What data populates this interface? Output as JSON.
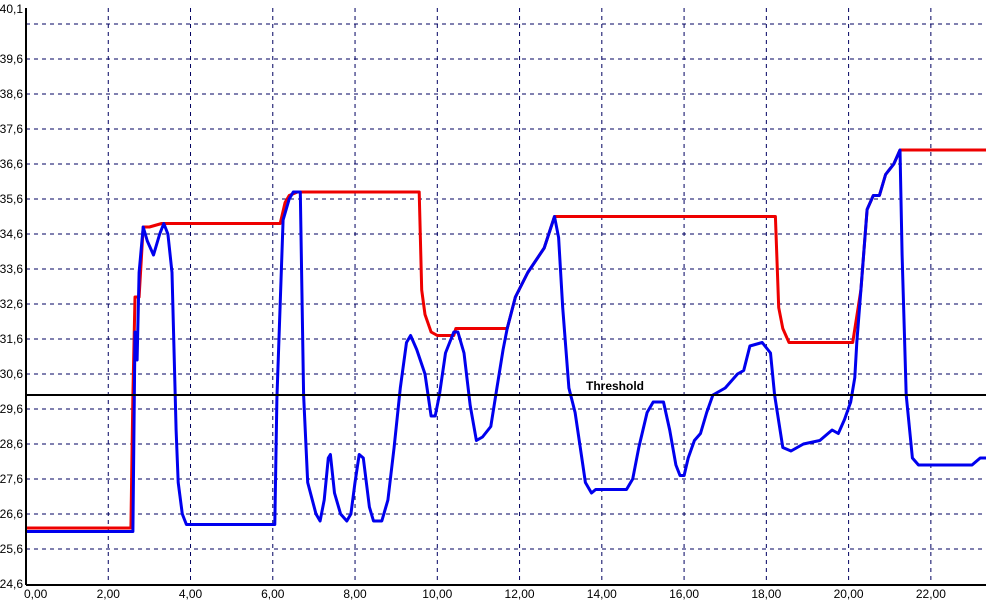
{
  "chart_data": {
    "type": "line",
    "title": "",
    "xlabel": "",
    "ylabel": "",
    "xlim": [
      0,
      23.35
    ],
    "ylim": [
      24.6,
      41.05
    ],
    "grid": true,
    "x_ticks": [
      {
        "value": 0,
        "label": "0,00"
      },
      {
        "value": 2,
        "label": "2,00"
      },
      {
        "value": 4,
        "label": "4,00"
      },
      {
        "value": 6,
        "label": "6,00"
      },
      {
        "value": 8,
        "label": "8,00"
      },
      {
        "value": 10,
        "label": "10,00"
      },
      {
        "value": 12,
        "label": "12,00"
      },
      {
        "value": 14,
        "label": "14,00"
      },
      {
        "value": 16,
        "label": "16,00"
      },
      {
        "value": 18,
        "label": "18,00"
      },
      {
        "value": 20,
        "label": "20,00"
      },
      {
        "value": 22,
        "label": "22,00"
      }
    ],
    "y_ticks": [
      {
        "value": 24.6,
        "label": "24,6"
      },
      {
        "value": 25.6,
        "label": "25,6"
      },
      {
        "value": 26.6,
        "label": "26,6"
      },
      {
        "value": 27.6,
        "label": "27,6"
      },
      {
        "value": 28.6,
        "label": "28,6"
      },
      {
        "value": 29.6,
        "label": "29,6"
      },
      {
        "value": 30.6,
        "label": "30,6"
      },
      {
        "value": 31.6,
        "label": "31,6"
      },
      {
        "value": 32.6,
        "label": "32,6"
      },
      {
        "value": 33.6,
        "label": "33,6"
      },
      {
        "value": 34.6,
        "label": "34,6"
      },
      {
        "value": 35.6,
        "label": "35,6"
      },
      {
        "value": 36.6,
        "label": "36,6"
      },
      {
        "value": 37.6,
        "label": "37,6"
      },
      {
        "value": 38.6,
        "label": "38,6"
      },
      {
        "value": 39.6,
        "label": "39,6"
      },
      {
        "value": 40.6,
        "label": ""
      }
    ],
    "y_max_label": "40,1",
    "threshold": {
      "value": 30.0,
      "label": "Threshold",
      "color": "#000000"
    },
    "series": [
      {
        "color": "#ee0000",
        "points": [
          [
            0,
            26.2
          ],
          [
            2.55,
            26.2
          ],
          [
            2.6,
            30.0
          ],
          [
            2.65,
            32.8
          ],
          [
            2.75,
            32.8
          ],
          [
            2.85,
            34.8
          ],
          [
            3.0,
            34.8
          ],
          [
            3.3,
            34.9
          ],
          [
            6.18,
            34.9
          ],
          [
            6.3,
            35.5
          ],
          [
            6.4,
            35.7
          ],
          [
            6.6,
            35.8
          ],
          [
            9.56,
            35.8
          ],
          [
            9.62,
            33.0
          ],
          [
            9.7,
            32.3
          ],
          [
            9.85,
            31.8
          ],
          [
            10.0,
            31.7
          ],
          [
            10.4,
            31.7
          ],
          [
            10.45,
            31.9
          ],
          [
            11.7,
            31.9
          ],
          [
            11.9,
            32.8
          ],
          [
            12.2,
            33.5
          ],
          [
            12.6,
            34.2
          ],
          [
            12.85,
            35.1
          ],
          [
            18.22,
            35.1
          ],
          [
            18.3,
            32.5
          ],
          [
            18.4,
            31.9
          ],
          [
            18.55,
            31.5
          ],
          [
            20.1,
            31.5
          ],
          [
            20.3,
            33.0
          ],
          [
            20.45,
            35.3
          ],
          [
            20.6,
            35.7
          ],
          [
            20.75,
            35.7
          ],
          [
            20.9,
            36.3
          ],
          [
            21.1,
            36.6
          ],
          [
            21.25,
            37.0
          ],
          [
            23.35,
            37.0
          ]
        ]
      },
      {
        "color": "#0000ee",
        "points": [
          [
            0,
            26.1
          ],
          [
            2.6,
            26.1
          ],
          [
            2.65,
            31.8
          ],
          [
            2.7,
            31.0
          ],
          [
            2.75,
            33.5
          ],
          [
            2.85,
            34.8
          ],
          [
            2.95,
            34.4
          ],
          [
            3.1,
            34.0
          ],
          [
            3.25,
            34.6
          ],
          [
            3.35,
            34.9
          ],
          [
            3.45,
            34.6
          ],
          [
            3.55,
            33.5
          ],
          [
            3.65,
            29.0
          ],
          [
            3.7,
            27.5
          ],
          [
            3.8,
            26.6
          ],
          [
            3.9,
            26.3
          ],
          [
            6.05,
            26.3
          ],
          [
            6.1,
            29.9
          ],
          [
            6.25,
            35.0
          ],
          [
            6.4,
            35.6
          ],
          [
            6.5,
            35.8
          ],
          [
            6.67,
            35.8
          ],
          [
            6.75,
            30.0
          ],
          [
            6.85,
            27.5
          ],
          [
            7.05,
            26.6
          ],
          [
            7.15,
            26.4
          ],
          [
            7.25,
            27.0
          ],
          [
            7.35,
            28.2
          ],
          [
            7.4,
            28.3
          ],
          [
            7.5,
            27.2
          ],
          [
            7.65,
            26.6
          ],
          [
            7.8,
            26.4
          ],
          [
            7.9,
            26.6
          ],
          [
            8.0,
            27.5
          ],
          [
            8.1,
            28.3
          ],
          [
            8.2,
            28.2
          ],
          [
            8.35,
            26.8
          ],
          [
            8.45,
            26.4
          ],
          [
            8.65,
            26.4
          ],
          [
            8.8,
            27.0
          ],
          [
            8.95,
            28.5
          ],
          [
            9.1,
            30.2
          ],
          [
            9.25,
            31.5
          ],
          [
            9.35,
            31.7
          ],
          [
            9.5,
            31.3
          ],
          [
            9.7,
            30.6
          ],
          [
            9.85,
            29.4
          ],
          [
            9.95,
            29.4
          ],
          [
            10.05,
            30.0
          ],
          [
            10.2,
            31.2
          ],
          [
            10.4,
            31.8
          ],
          [
            10.5,
            31.8
          ],
          [
            10.65,
            31.2
          ],
          [
            10.8,
            29.7
          ],
          [
            10.95,
            28.7
          ],
          [
            11.1,
            28.8
          ],
          [
            11.3,
            29.1
          ],
          [
            11.45,
            30.2
          ],
          [
            11.6,
            31.3
          ],
          [
            11.7,
            31.9
          ],
          [
            11.9,
            32.8
          ],
          [
            12.2,
            33.5
          ],
          [
            12.6,
            34.2
          ],
          [
            12.85,
            35.1
          ],
          [
            12.95,
            34.5
          ],
          [
            13.05,
            32.5
          ],
          [
            13.2,
            30.2
          ],
          [
            13.35,
            29.5
          ],
          [
            13.5,
            28.3
          ],
          [
            13.6,
            27.5
          ],
          [
            13.75,
            27.2
          ],
          [
            13.85,
            27.3
          ],
          [
            14.6,
            27.3
          ],
          [
            14.75,
            27.6
          ],
          [
            14.9,
            28.5
          ],
          [
            15.1,
            29.5
          ],
          [
            15.25,
            29.8
          ],
          [
            15.5,
            29.8
          ],
          [
            15.65,
            29.0
          ],
          [
            15.8,
            28.0
          ],
          [
            15.9,
            27.7
          ],
          [
            16.0,
            27.7
          ],
          [
            16.1,
            28.2
          ],
          [
            16.25,
            28.7
          ],
          [
            16.4,
            28.9
          ],
          [
            16.55,
            29.5
          ],
          [
            16.7,
            30.0
          ],
          [
            17.0,
            30.2
          ],
          [
            17.3,
            30.6
          ],
          [
            17.45,
            30.7
          ],
          [
            17.6,
            31.4
          ],
          [
            17.9,
            31.5
          ],
          [
            18.1,
            31.2
          ],
          [
            18.2,
            30.0
          ],
          [
            18.4,
            28.5
          ],
          [
            18.6,
            28.4
          ],
          [
            18.9,
            28.6
          ],
          [
            19.3,
            28.7
          ],
          [
            19.6,
            29.0
          ],
          [
            19.75,
            28.9
          ],
          [
            19.9,
            29.3
          ],
          [
            20.05,
            29.8
          ],
          [
            20.15,
            30.5
          ],
          [
            20.2,
            31.5
          ],
          [
            20.3,
            33.0
          ],
          [
            20.45,
            35.3
          ],
          [
            20.6,
            35.7
          ],
          [
            20.75,
            35.7
          ],
          [
            20.9,
            36.3
          ],
          [
            21.1,
            36.6
          ],
          [
            21.25,
            37.0
          ],
          [
            21.3,
            34.0
          ],
          [
            21.4,
            30.0
          ],
          [
            21.55,
            28.2
          ],
          [
            21.7,
            28.0
          ],
          [
            22.8,
            28.0
          ],
          [
            23.0,
            28.0
          ],
          [
            23.2,
            28.2
          ],
          [
            23.35,
            28.2
          ]
        ]
      }
    ]
  }
}
